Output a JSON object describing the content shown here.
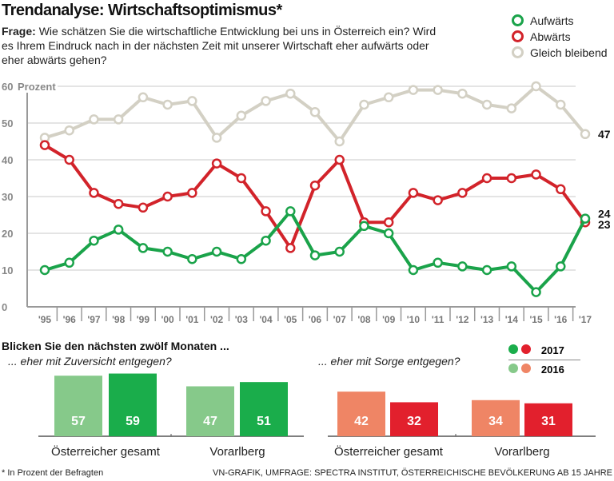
{
  "title": "Trendanalyse: Wirtschaftsoptimismus*",
  "question_label": "Frage:",
  "question": "Wie schätzen Sie die wirtschaftliche Entwicklung bei uns in Österreich ein? Wird es Ihrem Eindruck nach in der nächsten Zeit mit unserer Wirtschaft eher aufwärts oder eher abwärts gehen?",
  "chart_data": [
    {
      "type": "line",
      "ylabel": "Prozent",
      "ylim": [
        0,
        60
      ],
      "yticks": [
        0,
        10,
        20,
        30,
        40,
        50,
        60
      ],
      "grid": true,
      "legend": "top-right",
      "categories": [
        "'95",
        "'96",
        "'97",
        "'98",
        "'99",
        "'00",
        "'01",
        "'02",
        "'03",
        "'04",
        "'05",
        "'06",
        "'07",
        "'08",
        "'09",
        "'10",
        "'11",
        "'12",
        "'13",
        "'14",
        "'15",
        "'16",
        "'17"
      ],
      "series": [
        {
          "name": "Gleich bleibend",
          "color": "#d3d0c4",
          "values": [
            46,
            48,
            51,
            51,
            57,
            55,
            56,
            46,
            52,
            56,
            58,
            53,
            45,
            55,
            57,
            59,
            59,
            58,
            55,
            54,
            60,
            55,
            47
          ],
          "end_label": "47"
        },
        {
          "name": "Abwärts",
          "color": "#d2232a",
          "values": [
            44,
            40,
            31,
            28,
            27,
            30,
            31,
            39,
            35,
            26,
            16,
            33,
            40,
            23,
            23,
            31,
            29,
            31,
            35,
            35,
            36,
            32,
            23
          ],
          "end_label": "23"
        },
        {
          "name": "Aufwärts",
          "color": "#1aa34a",
          "values": [
            10,
            12,
            18,
            21,
            16,
            15,
            13,
            15,
            13,
            18,
            26,
            14,
            15,
            22,
            20,
            10,
            12,
            11,
            10,
            11,
            4,
            11,
            24
          ],
          "end_label": "24"
        }
      ]
    },
    {
      "type": "bar",
      "title": "Blicken Sie den nächsten zwölf Monaten ...",
      "subtitle": "... eher mit Zuversicht entgegen?",
      "categories": [
        "Österreicher gesamt",
        "Vorarlberg"
      ],
      "series": [
        {
          "name": "2016",
          "color": "#86c98a",
          "values": [
            57,
            47
          ]
        },
        {
          "name": "2017",
          "color": "#1aad4b",
          "values": [
            59,
            51
          ]
        }
      ]
    },
    {
      "type": "bar",
      "subtitle": "... eher mit Sorge entgegen?",
      "categories": [
        "Österreicher gesamt",
        "Vorarlberg"
      ],
      "series": [
        {
          "name": "2016",
          "color": "#ef8565",
          "values": [
            42,
            34
          ]
        },
        {
          "name": "2017",
          "color": "#e2202d",
          "values": [
            32,
            31
          ]
        }
      ]
    }
  ],
  "bar_legend": {
    "y2017": "2017",
    "y2016": "2016",
    "green2017": "#1aad4b",
    "red2017": "#e2202d",
    "green2016": "#86c98a",
    "red2016": "#ef8565"
  },
  "footnote": "* In Prozent der Befragten",
  "source": "VN-GRAFIK, UMFRAGE: SPECTRA INSTITUT, ÖSTERREICHISCHE BEVÖLKERUNG AB 15 JAHRE"
}
